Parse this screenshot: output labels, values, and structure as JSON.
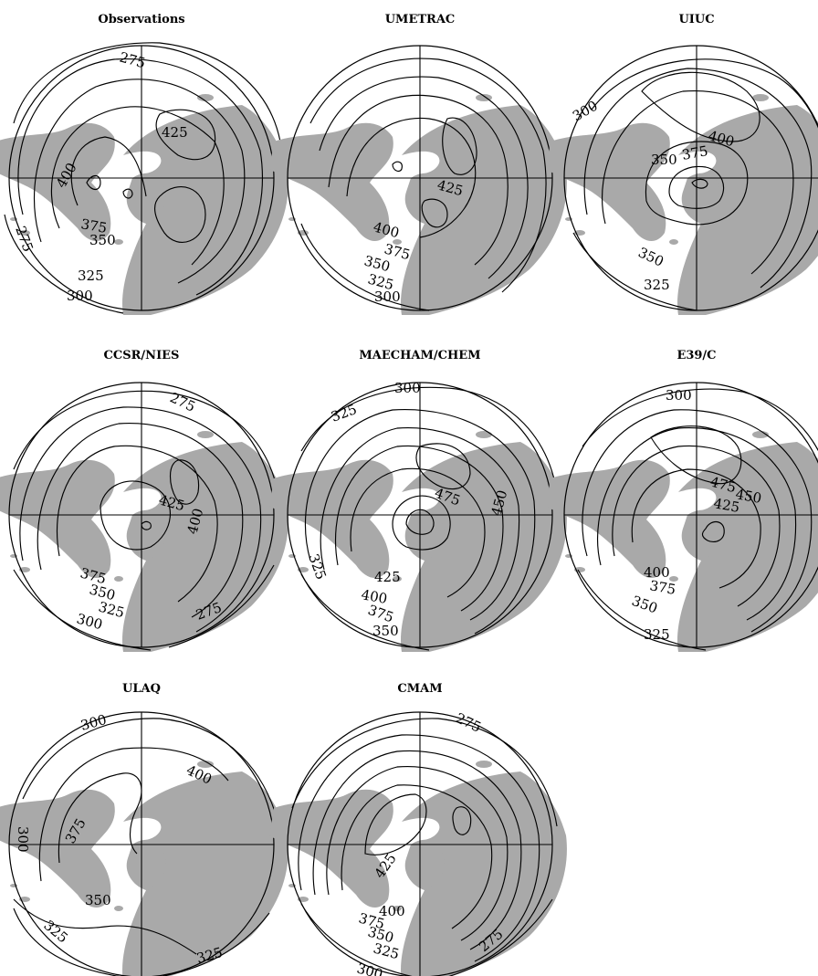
{
  "colors": {
    "land": "#a9a9a9",
    "line": "#000000",
    "background": "#ffffff"
  },
  "panels": [
    {
      "title": "Observations",
      "labels": [
        "275",
        "425",
        "400",
        "375",
        "350",
        "325",
        "300",
        "275"
      ]
    },
    {
      "title": "UMETRAC",
      "labels": [
        "425",
        "400",
        "375",
        "350",
        "325",
        "300"
      ]
    },
    {
      "title": "UIUC",
      "labels": [
        "300",
        "400",
        "375",
        "350",
        "350",
        "325"
      ]
    },
    {
      "title": "CCSR/NIES",
      "labels": [
        "275",
        "425",
        "400",
        "375",
        "350",
        "325",
        "300",
        "275"
      ]
    },
    {
      "title": "MAECHAM/CHEM",
      "labels": [
        "300",
        "325",
        "475",
        "450",
        "425",
        "400",
        "375",
        "350",
        "325"
      ]
    },
    {
      "title": "E39/C",
      "labels": [
        "300",
        "475",
        "450",
        "425",
        "400",
        "375",
        "350",
        "325"
      ]
    },
    {
      "title": "ULAQ",
      "labels": [
        "300",
        "400",
        "375",
        "300",
        "350",
        "325",
        "325"
      ]
    },
    {
      "title": "CMAM",
      "labels": [
        "275",
        "425",
        "400",
        "375",
        "350",
        "325",
        "300",
        "275"
      ]
    }
  ]
}
